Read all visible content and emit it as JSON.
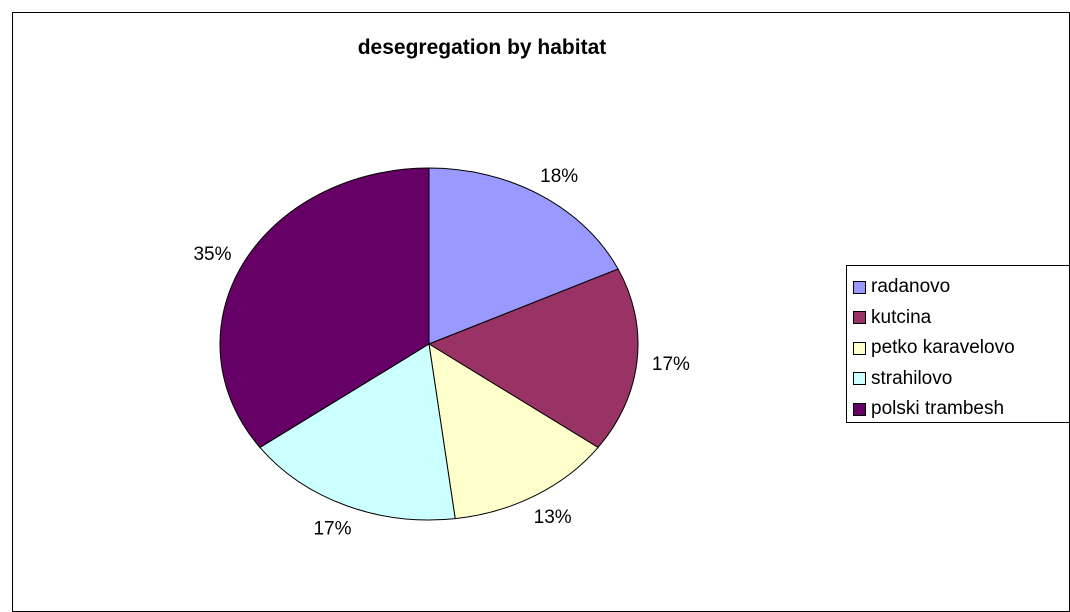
{
  "chart_data": {
    "type": "pie",
    "title": "desegregation by habitat",
    "categories": [
      "radanovo",
      "kutcina",
      "petko karavelovo",
      "strahilovo",
      "polski trambesh"
    ],
    "values": [
      18,
      17,
      13,
      17,
      35
    ],
    "labels": [
      "18%",
      "17%",
      "13%",
      "17%",
      "35%"
    ],
    "colors": [
      "#9999FF",
      "#993366",
      "#FFFFCC",
      "#CCFFFF",
      "#660066"
    ],
    "legend_position": "right"
  }
}
